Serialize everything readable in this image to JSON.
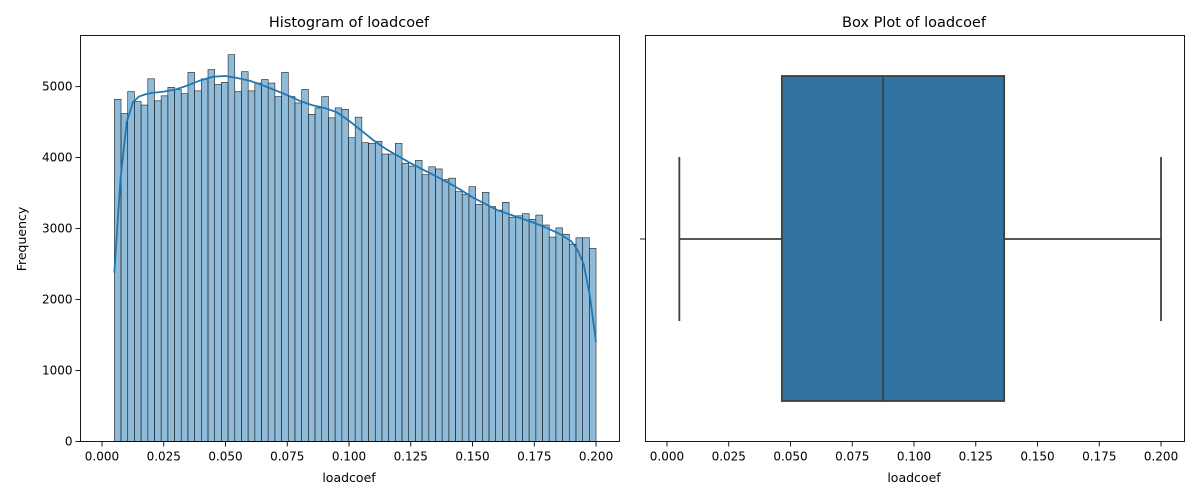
{
  "chart_data": [
    {
      "type": "bar",
      "title": "Histogram of loadcoef",
      "xlabel": "loadcoef",
      "ylabel": "Frequency",
      "xlim": [
        -0.0087,
        0.2095
      ],
      "ylim": [
        0,
        5720
      ],
      "xticks": [
        "0.000",
        "0.025",
        "0.050",
        "0.075",
        "0.100",
        "0.125",
        "0.150",
        "0.175",
        "0.200"
      ],
      "yticks": [
        "0",
        "1000",
        "2000",
        "3000",
        "4000",
        "5000"
      ],
      "bin_start": 0.005,
      "bin_end": 0.2,
      "bar_color": "#1f77b4",
      "values": [
        4820,
        4620,
        4930,
        4790,
        4740,
        5110,
        4800,
        4870,
        4990,
        4960,
        4900,
        5200,
        4940,
        5110,
        5240,
        5030,
        5060,
        5450,
        4930,
        5210,
        4940,
        5050,
        5100,
        5050,
        4860,
        5200,
        4860,
        4770,
        4960,
        4610,
        4700,
        4860,
        4560,
        4700,
        4680,
        4280,
        4570,
        4210,
        4200,
        4230,
        4050,
        4050,
        4200,
        3920,
        3880,
        3960,
        3760,
        3870,
        3840,
        3690,
        3710,
        3520,
        3480,
        3590,
        3340,
        3510,
        3310,
        3260,
        3370,
        3160,
        3180,
        3210,
        3130,
        3190,
        3050,
        2880,
        3010,
        2920,
        2780,
        2870,
        2870,
        2720
      ],
      "kde": {
        "x": [
          0.005,
          0.0075,
          0.01,
          0.0125,
          0.015,
          0.0175,
          0.02,
          0.025,
          0.03,
          0.035,
          0.04,
          0.045,
          0.05,
          0.055,
          0.06,
          0.065,
          0.07,
          0.075,
          0.08,
          0.085,
          0.09,
          0.095,
          0.1,
          0.105,
          0.11,
          0.115,
          0.12,
          0.125,
          0.13,
          0.135,
          0.14,
          0.145,
          0.15,
          0.155,
          0.16,
          0.165,
          0.17,
          0.175,
          0.18,
          0.185,
          0.19,
          0.1925,
          0.195,
          0.1975,
          0.2
        ],
        "y": [
          2380,
          3700,
          4500,
          4780,
          4860,
          4890,
          4910,
          4930,
          4960,
          5020,
          5090,
          5140,
          5150,
          5120,
          5080,
          5020,
          4950,
          4880,
          4800,
          4740,
          4700,
          4640,
          4520,
          4380,
          4240,
          4120,
          4020,
          3920,
          3830,
          3740,
          3650,
          3550,
          3440,
          3350,
          3260,
          3200,
          3140,
          3080,
          3010,
          2930,
          2820,
          2700,
          2500,
          2050,
          1400
        ]
      }
    },
    {
      "type": "box",
      "title": "Box Plot of loadcoef",
      "xlabel": "loadcoef",
      "xlim": [
        -0.0087,
        0.2095
      ],
      "xticks": [
        "0.000",
        "0.025",
        "0.050",
        "0.075",
        "0.100",
        "0.125",
        "0.150",
        "0.175",
        "0.200"
      ],
      "box_color": "#3274a1",
      "whisker_low": 0.005,
      "q1": 0.0465,
      "median": 0.0875,
      "q3": 0.1365,
      "whisker_high": 0.2
    }
  ]
}
